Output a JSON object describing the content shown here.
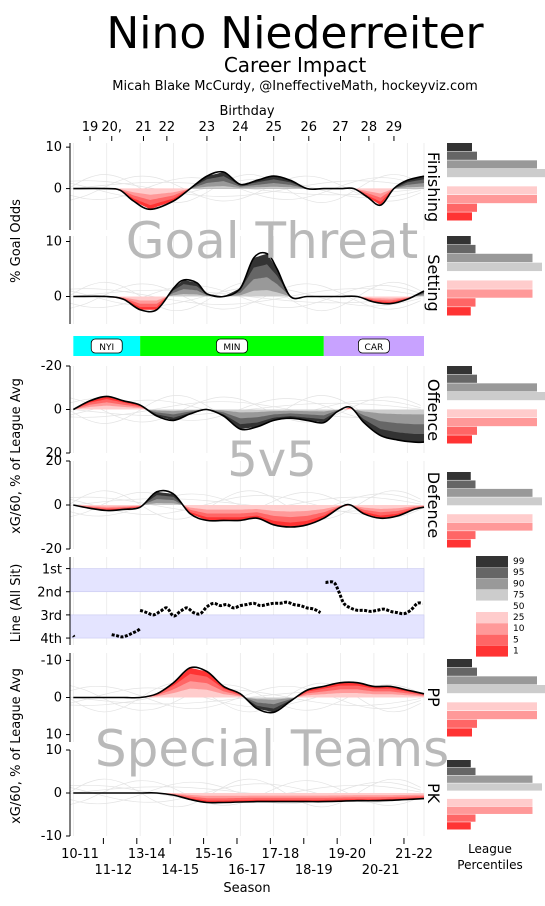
{
  "header": {
    "title": "Nino Niederreiter",
    "subtitle": "Career Impact",
    "credit": "Micah Blake McCurdy, @IneffectiveMath, hockeyviz.com"
  },
  "top_axis": {
    "label": "Birthday",
    "ticks": [
      "19",
      "20,",
      "21",
      "22",
      "23",
      "24",
      "25",
      "26",
      "27",
      "28",
      "29"
    ],
    "tick_seasons": [
      0.5,
      1.15,
      2.1,
      2.8,
      4.0,
      5.0,
      6.0,
      7.05,
      8.0,
      8.85,
      9.6
    ]
  },
  "bottom_axis": {
    "label": "Season",
    "ticks_row1": [
      "10-11",
      "13-14",
      "15-16",
      "17-18",
      "19-20",
      "21-22"
    ],
    "ticks_row2": [
      "11-12",
      "14-15",
      "16-17",
      "18-19",
      "20-21"
    ]
  },
  "watermarks": {
    "goal_threat": "Goal Threat",
    "fivev5": "5v5",
    "special_teams": "Special Teams"
  },
  "panel_titles": {
    "finishing": "Finishing",
    "setting": "Setting",
    "offence": "Offence",
    "defence": "Defence",
    "pp": "PP",
    "pk": "PK"
  },
  "y_labels": {
    "goal_odds": "% Goal Odds",
    "xg_5v5": "xG/60, % of League Avg",
    "line": "Line (All Sit)",
    "xg_st": "xG/60, % of League Avg"
  },
  "teams": [
    {
      "name": "NYI",
      "start": 0,
      "end": 2.0,
      "color": "#00ffff"
    },
    {
      "name": "MIN",
      "start": 2.0,
      "end": 7.5,
      "color": "#00ff00"
    },
    {
      "name": "CAR",
      "start": 7.5,
      "end": 10.5,
      "color": "#c8a2ff"
    }
  ],
  "line_ticks": [
    "1st",
    "2nd",
    "3rd",
    "4th"
  ],
  "legend": {
    "labels": [
      "99",
      "95",
      "90",
      "75",
      "50",
      "25",
      "10",
      "5",
      "1"
    ],
    "colors": [
      "#333333",
      "#666666",
      "#999999",
      "#cccccc",
      "#ffffff",
      "#ffcccc",
      "#ff9999",
      "#ff6666",
      "#ff3333"
    ]
  },
  "percentile_caption": [
    "League",
    "Percentiles"
  ],
  "chart_data": {
    "type": "line",
    "x_label": "Season",
    "x_range": [
      -0.1,
      10.5
    ],
    "panels": [
      {
        "name": "Finishing",
        "ylim": [
          11,
          -10
        ],
        "yticks": [
          10,
          0
        ],
        "x": [
          0,
          1,
          1.4,
          1.8,
          2.3,
          3,
          3.5,
          4,
          4.5,
          5,
          5.5,
          6,
          6.5,
          7,
          7.5,
          8,
          8.4,
          8.8,
          9.2,
          9.6,
          10,
          10.5
        ],
        "values": [
          0,
          0,
          -0.4,
          -3,
          -5,
          -3,
          0,
          3,
          4,
          1,
          2,
          3,
          2,
          0,
          0,
          0,
          0,
          -2,
          -4,
          0,
          2,
          3
        ]
      },
      {
        "name": "Setting",
        "ylim": [
          11,
          -5
        ],
        "yticks": [
          10,
          0
        ],
        "x": [
          0,
          1,
          1.5,
          2,
          2.5,
          3,
          3.3,
          3.7,
          4,
          4.5,
          5,
          5.4,
          5.8,
          6.1,
          6.5,
          7,
          7.5,
          8,
          8.5,
          9,
          9.5,
          10,
          10.5
        ],
        "values": [
          0,
          0,
          -0.5,
          -2.4,
          -2.4,
          1.5,
          3,
          2.5,
          0.5,
          0,
          1.5,
          7,
          7.8,
          5,
          0,
          0,
          0,
          0,
          0,
          -1,
          -1.3,
          -0.5,
          1
        ]
      },
      {
        "name": "Offence",
        "ylim": [
          -20,
          20
        ],
        "yticks": [
          20,
          0,
          -20
        ],
        "x": [
          0,
          0.5,
          1,
          1.5,
          2,
          2.5,
          3,
          3.5,
          4,
          4.5,
          5,
          5.5,
          6,
          6.5,
          7,
          7.5,
          7.9,
          8.3,
          8.7,
          9.2,
          9.7,
          10.2,
          10.5
        ],
        "values": [
          0,
          -4,
          -6,
          -4,
          -2,
          3,
          5,
          2,
          0,
          3,
          9,
          8,
          5,
          4,
          5,
          6,
          1,
          -1,
          6,
          12,
          14,
          15,
          15
        ]
      },
      {
        "name": "Defence",
        "ylim": [
          20,
          -20
        ],
        "yticks": [
          -20,
          0,
          20
        ],
        "x": [
          0,
          0.5,
          1,
          1.5,
          2,
          2.5,
          3,
          3.5,
          4,
          4.5,
          5,
          5.5,
          6,
          6.5,
          7,
          7.5,
          8,
          8.3,
          8.7,
          9.2,
          9.7,
          10.2,
          10.5
        ],
        "values": [
          0,
          -1.5,
          -2.5,
          -2,
          -1,
          6,
          5,
          -4,
          -7,
          -7,
          -7,
          -6,
          -9,
          -10,
          -9,
          -6,
          -1,
          0,
          -4,
          -6,
          -5,
          -2,
          -1
        ]
      },
      {
        "name": "PP",
        "ylim": [
          -12,
          12
        ],
        "yticks": [
          10,
          0,
          -10
        ],
        "x": [
          0,
          1,
          1.5,
          2,
          2.5,
          3,
          3.5,
          4,
          4.5,
          5,
          5.5,
          6,
          6.5,
          7,
          7.5,
          8,
          8.5,
          9,
          9.5,
          10,
          10.5
        ],
        "values": [
          0,
          0,
          0,
          0,
          -1,
          -4,
          -8,
          -7,
          -3,
          -1,
          3,
          4,
          1,
          -2,
          -3,
          -4,
          -4,
          -3,
          -3,
          -2,
          -1
        ]
      },
      {
        "name": "PK",
        "ylim": [
          10,
          -10
        ],
        "yticks": [
          -10,
          0,
          10
        ],
        "x": [
          0,
          1,
          1.5,
          2,
          2.5,
          3,
          3.5,
          4,
          4.5,
          5,
          5.5,
          6,
          6.5,
          7,
          7.5,
          8,
          8.5,
          9,
          9.5,
          10,
          10.5
        ],
        "values": [
          0,
          0,
          0,
          0,
          0,
          -0.5,
          -1.5,
          -2.2,
          -2.2,
          -2.1,
          -2,
          -2,
          -2,
          -2,
          -2,
          -1.9,
          -1.8,
          -1.8,
          -1.7,
          -1.5,
          -1.3
        ]
      }
    ],
    "line_position": {
      "ylim": [
        0.5,
        4.3
      ],
      "bands": [
        [
          1,
          2
        ],
        [
          3,
          4
        ]
      ],
      "segments": [
        {
          "x": [
            0,
            0.02
          ],
          "y": [
            3.9,
            3.95
          ]
        },
        {
          "x": [
            1.15,
            1.3,
            1.45,
            1.6,
            1.75,
            1.9,
            2.0
          ],
          "y": [
            3.85,
            3.9,
            3.95,
            3.9,
            3.8,
            3.7,
            3.6
          ]
        },
        {
          "x": [
            2.0,
            2.2,
            2.4,
            2.6,
            2.8,
            3.0,
            3.2,
            3.4,
            3.6,
            3.8,
            4.0,
            4.2,
            4.4,
            4.6,
            4.8,
            5.0,
            5.2,
            5.4,
            5.6,
            5.8,
            6.0,
            6.2,
            6.4,
            6.6,
            6.8,
            7.0,
            7.2,
            7.4
          ],
          "y": [
            2.8,
            2.9,
            3.0,
            2.85,
            2.7,
            3.05,
            2.85,
            2.7,
            2.9,
            2.95,
            2.65,
            2.5,
            2.6,
            2.55,
            2.7,
            2.6,
            2.55,
            2.5,
            2.6,
            2.55,
            2.5,
            2.5,
            2.45,
            2.55,
            2.6,
            2.7,
            2.75,
            2.9
          ]
        },
        {
          "x": [
            7.55,
            7.8,
            7.95,
            8.1,
            8.3,
            8.5,
            8.7,
            8.9,
            9.1,
            9.3,
            9.5,
            9.7,
            9.9,
            10.1,
            10.3,
            10.45
          ],
          "y": [
            1.6,
            1.6,
            2.0,
            2.5,
            2.7,
            2.8,
            2.8,
            2.85,
            2.8,
            2.75,
            2.85,
            2.9,
            2.95,
            2.8,
            2.5,
            2.5
          ]
        }
      ]
    }
  }
}
